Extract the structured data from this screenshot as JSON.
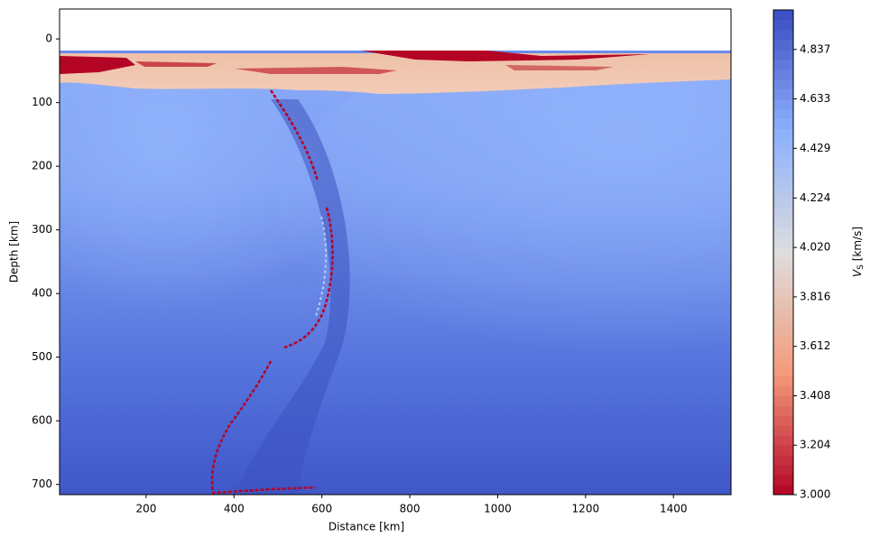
{
  "chart_data": {
    "type": "heatmap",
    "xlabel": "Distance [km]",
    "ylabel": "Depth [km]",
    "xlim": [
      3,
      1531
    ],
    "xticks": [
      200,
      400,
      600,
      800,
      1000,
      1200,
      1400
    ],
    "ylim": [
      716,
      -47
    ],
    "yticks": [
      0,
      100,
      200,
      300,
      400,
      500,
      600,
      700
    ],
    "colormap": "coolwarm_r",
    "colorbar": {
      "label": {
        "symbol": "V",
        "subscript": "S",
        "unit": "[km/s]"
      },
      "lim": [
        3.0,
        5.0
      ],
      "ticks": [
        {
          "value": 3.0,
          "label": "3.000"
        },
        {
          "value": 3.204,
          "label": "3.204"
        },
        {
          "value": 3.408,
          "label": "3.408"
        },
        {
          "value": 3.612,
          "label": "3.612"
        },
        {
          "value": 3.816,
          "label": "3.816"
        },
        {
          "value": 4.02,
          "label": "4.020"
        },
        {
          "value": 4.224,
          "label": "4.224"
        },
        {
          "value": 4.429,
          "label": "4.429"
        },
        {
          "value": 4.633,
          "label": "4.633"
        },
        {
          "value": 4.837,
          "label": "4.837"
        }
      ]
    }
  }
}
